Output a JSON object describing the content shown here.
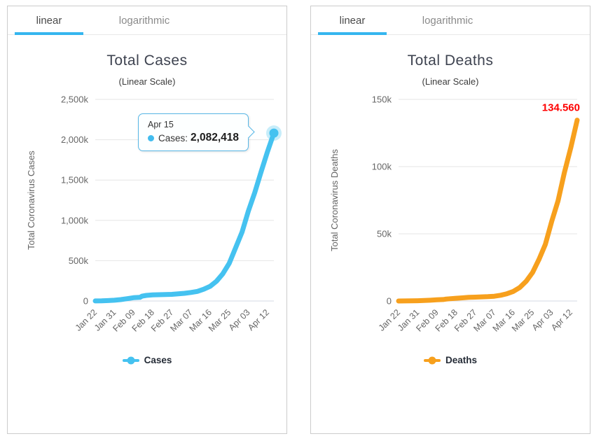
{
  "tab_labels": {
    "linear": "linear",
    "logarithmic": "logarithmic"
  },
  "colors": {
    "cases_line": "#45c2f0",
    "deaths_line": "#f7a01d",
    "active_tab_underline": "#35b6ef",
    "end_label_red": "#ff0000",
    "grid": "#e6e6e6",
    "axis_line": "#d4dae4",
    "tick_text": "#666666",
    "title_text": "#3e4350",
    "panel_border": "#cccccc"
  },
  "cases_panel": {
    "title": "Total Cases",
    "subtitle": "(Linear Scale)",
    "legend_label": "Cases",
    "tooltip": {
      "date": "Apr 15",
      "series_label": "Cases:",
      "value": "2,082,418"
    }
  },
  "deaths_panel": {
    "title": "Total Deaths",
    "subtitle": "(Linear Scale)",
    "legend_label": "Deaths",
    "end_label": "134.560"
  },
  "chart_data": [
    {
      "type": "line",
      "title": "Total Cases",
      "subtitle": "(Linear Scale)",
      "ylabel": "Total Coronavirus Cases",
      "legend": "Cases",
      "color": "#45c2f0",
      "ylim": [
        0,
        2500000
      ],
      "yticks": [
        {
          "value": 0,
          "label": "0"
        },
        {
          "value": 500000,
          "label": "500k"
        },
        {
          "value": 1000000,
          "label": "1,000k"
        },
        {
          "value": 1500000,
          "label": "1,500k"
        },
        {
          "value": 2000000,
          "label": "2,000k"
        },
        {
          "value": 2500000,
          "label": "2,500k"
        }
      ],
      "xticks": [
        "Jan 22",
        "Jan 31",
        "Feb 09",
        "Feb 18",
        "Feb 27",
        "Mar 07",
        "Mar 16",
        "Mar 25",
        "Apr 03",
        "Apr 12"
      ],
      "x": [
        "Jan 22",
        "Jan 25",
        "Jan 28",
        "Jan 31",
        "Feb 03",
        "Feb 06",
        "Feb 09",
        "Feb 12",
        "Feb 13",
        "Feb 15",
        "Feb 18",
        "Feb 21",
        "Feb 24",
        "Feb 27",
        "Mar 01",
        "Mar 04",
        "Mar 07",
        "Mar 10",
        "Mar 13",
        "Mar 16",
        "Mar 19",
        "Mar 22",
        "Mar 25",
        "Mar 28",
        "Mar 31",
        "Apr 03",
        "Apr 06",
        "Apr 09",
        "Apr 12",
        "Apr 15"
      ],
      "values": [
        580,
        1975,
        5578,
        9927,
        17491,
        28276,
        40553,
        45171,
        60328,
        69030,
        75184,
        77794,
        80087,
        82756,
        88369,
        95124,
        105586,
        118620,
        145416,
        181546,
        244933,
        337469,
        467710,
        660706,
        853200,
        1116662,
        1345048,
        1603719,
        1852365,
        2082418
      ],
      "last_point": {
        "date": "Apr 15",
        "value": 2082418
      }
    },
    {
      "type": "line",
      "title": "Total Deaths",
      "subtitle": "(Linear Scale)",
      "ylabel": "Total Coronavirus Deaths",
      "legend": "Deaths",
      "color": "#f7a01d",
      "ylim": [
        0,
        150000
      ],
      "yticks": [
        {
          "value": 0,
          "label": "0"
        },
        {
          "value": 50000,
          "label": "50k"
        },
        {
          "value": 100000,
          "label": "100k"
        },
        {
          "value": 150000,
          "label": "150k"
        }
      ],
      "xticks": [
        "Jan 22",
        "Jan 31",
        "Feb 09",
        "Feb 18",
        "Feb 27",
        "Mar 07",
        "Mar 16",
        "Mar 25",
        "Apr 03",
        "Apr 12"
      ],
      "x": [
        "Jan 22",
        "Jan 25",
        "Jan 28",
        "Jan 31",
        "Feb 03",
        "Feb 06",
        "Feb 09",
        "Feb 12",
        "Feb 13",
        "Feb 15",
        "Feb 18",
        "Feb 21",
        "Feb 24",
        "Feb 27",
        "Mar 01",
        "Mar 04",
        "Mar 07",
        "Mar 10",
        "Mar 13",
        "Mar 16",
        "Mar 19",
        "Mar 22",
        "Mar 25",
        "Mar 28",
        "Mar 31",
        "Apr 03",
        "Apr 06",
        "Apr 09",
        "Apr 12",
        "Apr 15"
      ],
      "values": [
        17,
        56,
        131,
        213,
        362,
        565,
        910,
        1115,
        1369,
        1666,
        2010,
        2360,
        2699,
        2858,
        3050,
        3254,
        3558,
        4262,
        5401,
        7126,
        10000,
        14641,
        21181,
        30864,
        42032,
        59160,
        74565,
        95718,
        114090,
        134560
      ],
      "last_point": {
        "date": "Apr 15",
        "value": 134560,
        "label": "134.560"
      }
    }
  ]
}
